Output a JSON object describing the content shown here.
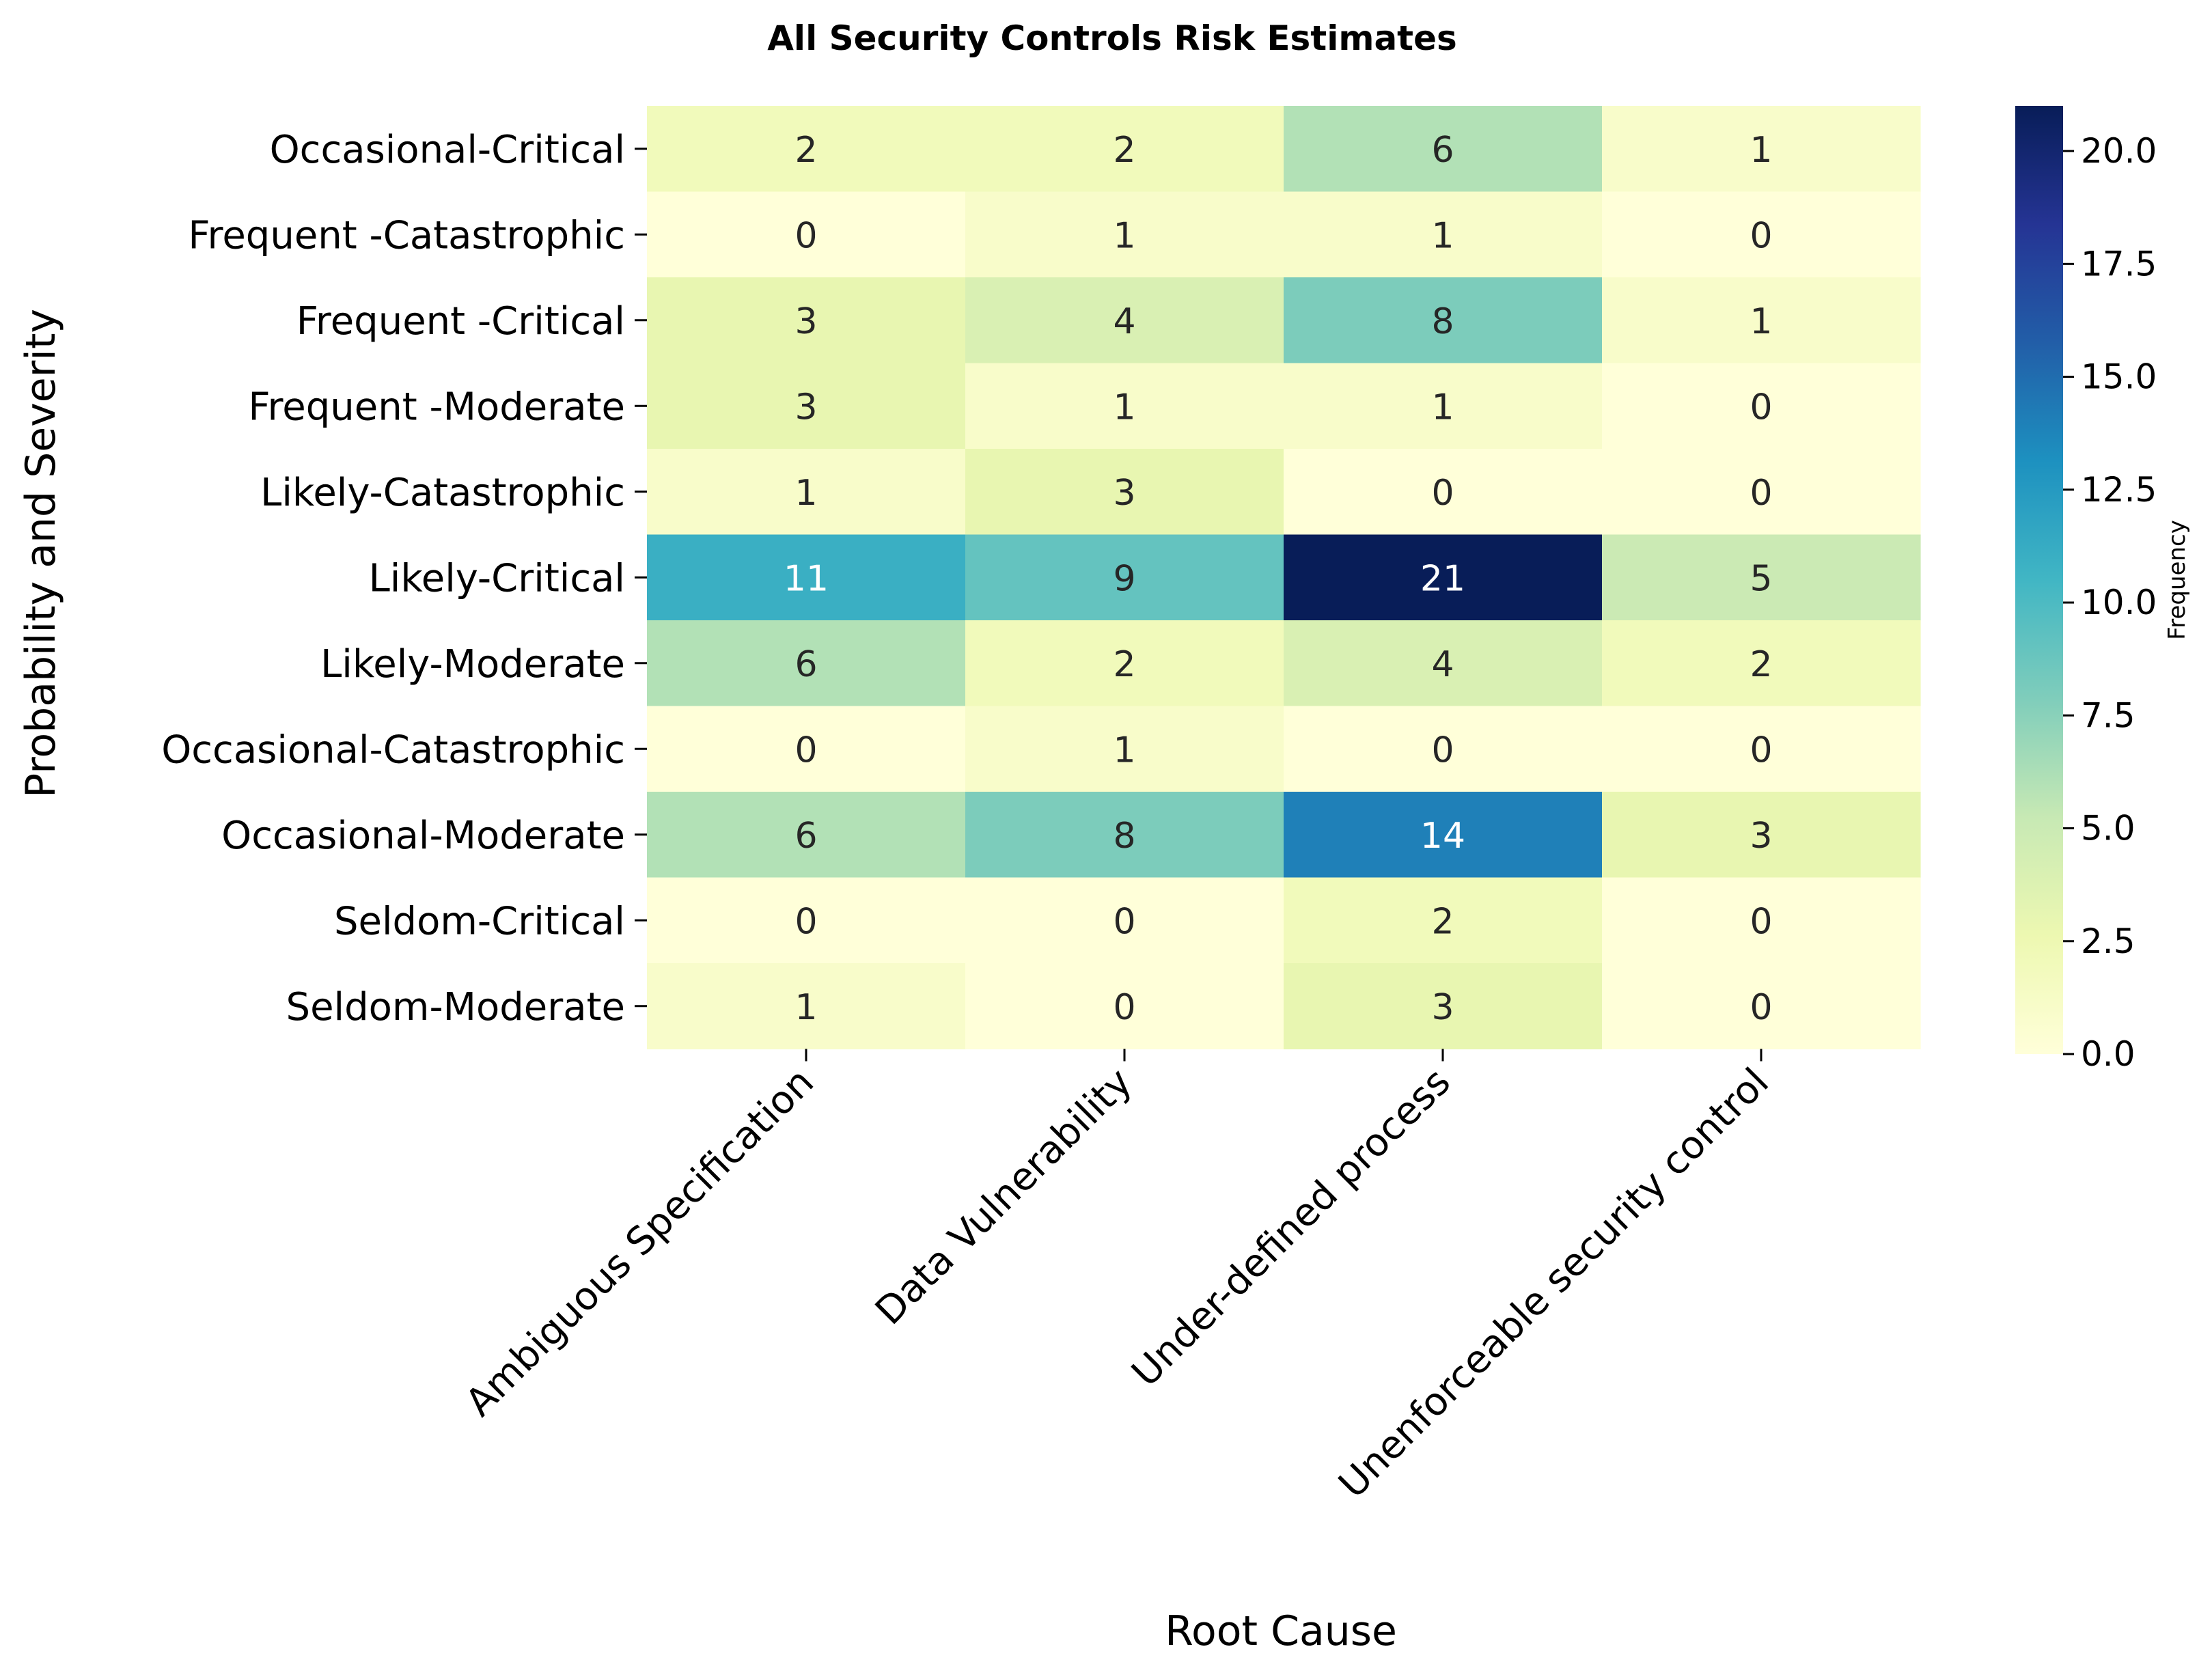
{
  "chart_data": {
    "type": "heatmap",
    "title": "All Security Controls Risk Estimates",
    "xlabel": "Root Cause",
    "ylabel": "Probability and Severity",
    "x_categories": [
      "Ambiguous Specification",
      "Data Vulnerability",
      "Under-defined process",
      "Unenforceable security control"
    ],
    "y_categories": [
      "Occasional-Critical",
      "Frequent -Catastrophic",
      "Frequent -Critical",
      "Frequent -Moderate",
      "Likely-Catastrophic",
      "Likely-Critical",
      "Likely-Moderate",
      "Occasional-Catastrophic",
      "Occasional-Moderate",
      "Seldom-Critical",
      "Seldom-Moderate"
    ],
    "values": [
      [
        2,
        2,
        6,
        1
      ],
      [
        0,
        1,
        1,
        0
      ],
      [
        3,
        4,
        8,
        1
      ],
      [
        3,
        1,
        1,
        0
      ],
      [
        1,
        3,
        0,
        0
      ],
      [
        11,
        9,
        21,
        5
      ],
      [
        6,
        2,
        4,
        2
      ],
      [
        0,
        1,
        0,
        0
      ],
      [
        6,
        8,
        14,
        3
      ],
      [
        0,
        0,
        2,
        0
      ],
      [
        1,
        0,
        3,
        0
      ]
    ],
    "colormap": "YlGnBu",
    "colorbar": {
      "label": "Frequency",
      "range": [
        0,
        21
      ],
      "ticks": [
        0.0,
        2.5,
        5.0,
        7.5,
        10.0,
        12.5,
        15.0,
        17.5,
        20.0
      ],
      "tick_labels": [
        "0.0",
        "2.5",
        "5.0",
        "7.5",
        "10.0",
        "12.5",
        "15.0",
        "17.5",
        "20.0"
      ]
    },
    "annotation_light_text_threshold": 10
  }
}
